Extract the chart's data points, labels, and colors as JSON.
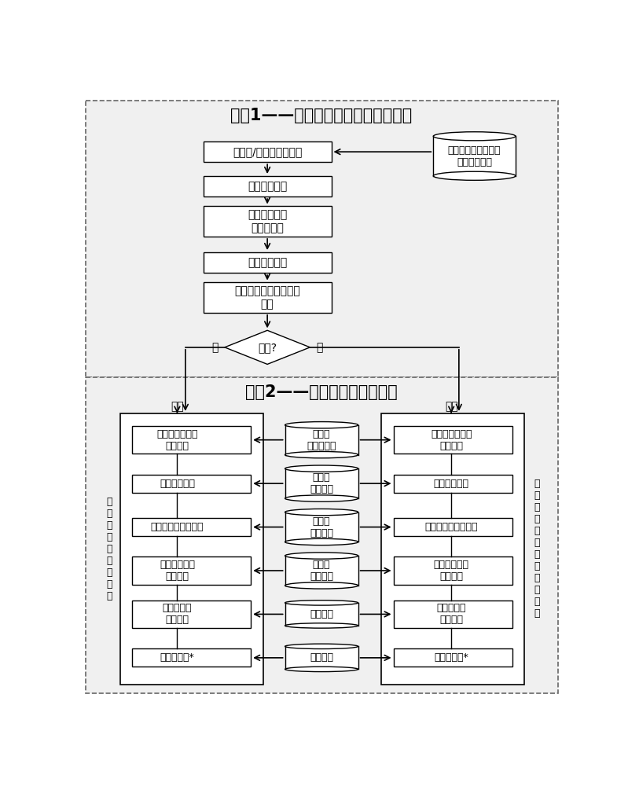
{
  "title1": "步骤1——管子支吊架骨架模型预布置",
  "title2": "步骤2——管子支吊架模型重组",
  "step1_boxes": [
    "调入单/多管支吊架骨架",
    "选择支架方向",
    "根据支腿数量\n选择参考面",
    "选择单根管子",
    "在骨架中定义单根管子\n参考"
  ],
  "diamond_text": "多管?",
  "diamond_no": "否",
  "diamond_yes": "是",
  "db_text": "基于上下文的技术设\n计模板泛型库",
  "left_label": "单\n管\n支\n架\n（\n含\n风\n管\n）",
  "right_label": "两\n管\n或\n多\n管\n支\n架\n（\n含\n风\n管\n）",
  "left_regroup": "重组",
  "right_regroup": "重组",
  "left_boxes": [
    "调入隔振垫零件\n（可选）",
    "调入夹环零件",
    "调入支吊架支架模板",
    "调入夹板模板\n（可选）",
    "调入隔振器\n（可选）",
    "调入紧固件*"
  ],
  "right_boxes": [
    "调入隔振垫模板\n（可选）",
    "调入夹环模板",
    "调入支吊架支架模板",
    "调入夹板模板\n（可选）",
    "调入隔振器\n（可选）",
    "调入紧固件*"
  ],
  "center_cylinders": [
    "元件库\n（隔振垫）",
    "元件库\n（夹环）",
    "元件库\n（支架）",
    "元件库\n（夹板）",
    "标准件库",
    "紧固件库"
  ],
  "bg_color": "#ffffff"
}
